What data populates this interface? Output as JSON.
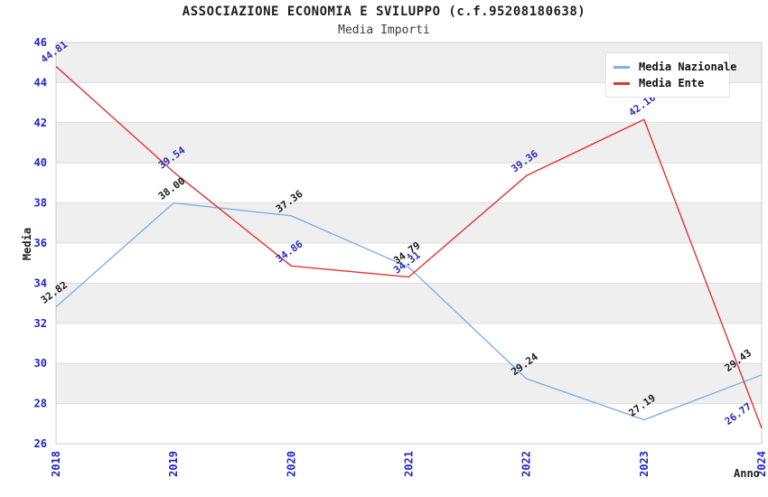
{
  "header": {
    "title": "ASSOCIAZIONE ECONOMIA E SVILUPPO (c.f.95208180638)",
    "subtitle": "Media Importi"
  },
  "chart_data": {
    "type": "line",
    "title": "ASSOCIAZIONE ECONOMIA E SVILUPPO (c.f.95208180638)",
    "subtitle": "Media Importi",
    "categories": [
      "2018",
      "2019",
      "2020",
      "2021",
      "2022",
      "2023",
      "2024"
    ],
    "series": [
      {
        "name": "Media Nazionale",
        "color": "#7eb1e3",
        "label_color": "#1a1a1a",
        "values": [
          32.82,
          38.0,
          37.36,
          34.79,
          29.24,
          27.19,
          29.43
        ]
      },
      {
        "name": "Media Ente",
        "color": "#e23333",
        "label_color": "#2b2bb4",
        "values": [
          44.81,
          39.54,
          34.86,
          34.31,
          39.36,
          42.16,
          26.77
        ]
      }
    ],
    "xlabel": "Anno",
    "ylabel": "Media",
    "ylim": [
      26,
      46
    ],
    "ytick_step": 2,
    "grid": "horizontal",
    "alternating_bands": true,
    "legend_position": "top-right",
    "point_labels": "two-decimals, rotated"
  },
  "colors": {
    "band": "#efefef",
    "grid": "#dcdcdc",
    "border": "#cccccc",
    "tick_label": "#2424cc",
    "title": "#1f1f1f",
    "subtitle": "#3c3c3c"
  }
}
